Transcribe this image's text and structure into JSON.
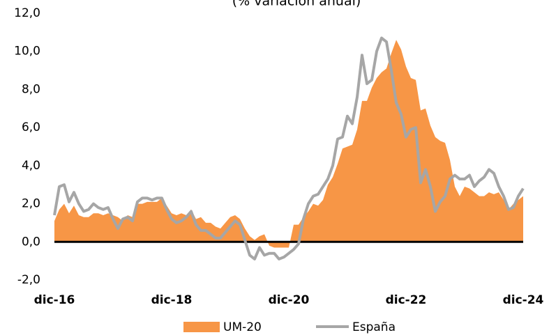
{
  "chart_data": {
    "type": "area-line",
    "title": "(% variación anual)",
    "categories": [
      "dic-16",
      null,
      null,
      null,
      null,
      null,
      null,
      null,
      null,
      null,
      null,
      null,
      null,
      null,
      null,
      null,
      null,
      null,
      null,
      null,
      null,
      null,
      null,
      null,
      "dic-18",
      null,
      null,
      null,
      null,
      null,
      null,
      null,
      null,
      null,
      null,
      null,
      null,
      null,
      null,
      null,
      null,
      null,
      null,
      null,
      null,
      null,
      null,
      null,
      "dic-20",
      null,
      null,
      null,
      null,
      null,
      null,
      null,
      null,
      null,
      null,
      null,
      null,
      null,
      null,
      null,
      null,
      null,
      null,
      null,
      null,
      null,
      null,
      null,
      "dic-22",
      null,
      null,
      null,
      null,
      null,
      null,
      null,
      null,
      null,
      null,
      null,
      null,
      null,
      null,
      null,
      null,
      null,
      null,
      null,
      null,
      null,
      null,
      null,
      "dic-24"
    ],
    "series": [
      {
        "name": "UM-20",
        "color": "#f79646",
        "kind": "area",
        "values": [
          1.1,
          1.7,
          2.0,
          1.5,
          1.9,
          1.4,
          1.3,
          1.3,
          1.5,
          1.5,
          1.4,
          1.5,
          1.4,
          1.3,
          1.1,
          1.4,
          1.3,
          2.0,
          2.0,
          2.1,
          2.1,
          2.1,
          2.3,
          1.9,
          1.5,
          1.4,
          1.5,
          1.4,
          1.7,
          1.2,
          1.3,
          1.0,
          1.0,
          0.8,
          0.7,
          1.0,
          1.3,
          1.4,
          1.2,
          0.7,
          0.3,
          0.1,
          0.3,
          0.4,
          -0.2,
          -0.3,
          -0.3,
          -0.3,
          -0.3,
          0.9,
          0.9,
          1.3,
          1.6,
          2.0,
          1.9,
          2.2,
          3.0,
          3.4,
          4.1,
          4.9,
          5.0,
          5.1,
          5.9,
          7.4,
          7.4,
          8.1,
          8.6,
          8.9,
          9.1,
          9.9,
          10.6,
          10.1,
          9.2,
          8.6,
          8.5,
          6.9,
          7.0,
          6.1,
          5.5,
          5.3,
          5.2,
          4.3,
          2.9,
          2.4,
          2.9,
          2.8,
          2.6,
          2.4,
          2.4,
          2.6,
          2.5,
          2.6,
          2.2,
          1.7,
          2.0,
          2.2,
          2.4
        ]
      },
      {
        "name": "España",
        "color": "#a6a6a6",
        "kind": "line",
        "values": [
          1.4,
          2.9,
          3.0,
          2.1,
          2.6,
          2.0,
          1.6,
          1.7,
          2.0,
          1.8,
          1.7,
          1.8,
          1.2,
          0.7,
          1.2,
          1.3,
          1.1,
          2.1,
          2.3,
          2.3,
          2.2,
          2.3,
          2.3,
          1.7,
          1.2,
          1.0,
          1.1,
          1.3,
          1.6,
          0.9,
          0.6,
          0.6,
          0.4,
          0.2,
          0.2,
          0.5,
          0.8,
          1.1,
          0.9,
          0.1,
          -0.7,
          -0.9,
          -0.3,
          -0.7,
          -0.6,
          -0.6,
          -0.9,
          -0.8,
          -0.6,
          -0.4,
          -0.1,
          1.2,
          2.0,
          2.4,
          2.5,
          2.9,
          3.3,
          4.0,
          5.4,
          5.5,
          6.6,
          6.2,
          7.6,
          9.8,
          8.3,
          8.5,
          10.0,
          10.7,
          10.5,
          9.0,
          7.3,
          6.7,
          5.5,
          5.9,
          6.0,
          3.1,
          3.8,
          2.9,
          1.6,
          2.1,
          2.4,
          3.3,
          3.5,
          3.3,
          3.3,
          3.5,
          2.9,
          3.2,
          3.4,
          3.8,
          3.6,
          2.9,
          2.4,
          1.7,
          1.8,
          2.4,
          2.8
        ]
      }
    ],
    "ylim": [
      -2,
      12
    ],
    "yticks": [
      {
        "value": -2,
        "label": "-2,0"
      },
      {
        "value": 0,
        "label": "0,0"
      },
      {
        "value": 2,
        "label": "2,0"
      },
      {
        "value": 4,
        "label": "4,0"
      },
      {
        "value": 6,
        "label": "6,0"
      },
      {
        "value": 8,
        "label": "8,0"
      },
      {
        "value": 10,
        "label": "10,0"
      },
      {
        "value": 12,
        "label": "12,0"
      }
    ],
    "grid": false
  }
}
